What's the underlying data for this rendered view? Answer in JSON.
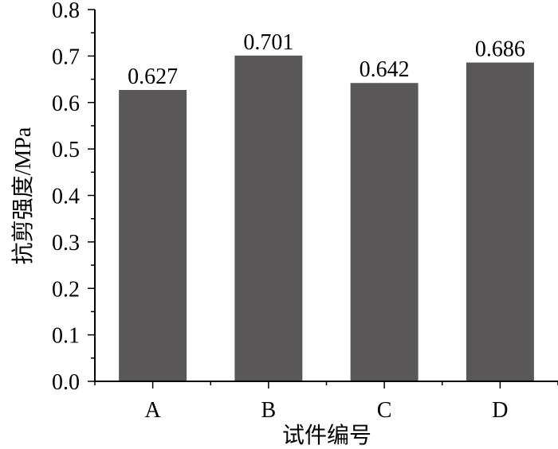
{
  "chart_data": {
    "type": "bar",
    "categories": [
      "A",
      "B",
      "C",
      "D"
    ],
    "values": [
      0.627,
      0.701,
      0.642,
      0.686
    ],
    "data_labels": [
      "0.627",
      "0.701",
      "0.642",
      "0.686"
    ],
    "title": "",
    "xlabel": "试件编号",
    "ylabel": "抗剪强度/MPa",
    "ylim": [
      0,
      0.8
    ],
    "yticks": [
      "0.0",
      "0.1",
      "0.2",
      "0.3",
      "0.4",
      "0.5",
      "0.6",
      "0.7",
      "0.8"
    ],
    "grid": false,
    "legend": "none",
    "bar_color": "#5a5758"
  }
}
